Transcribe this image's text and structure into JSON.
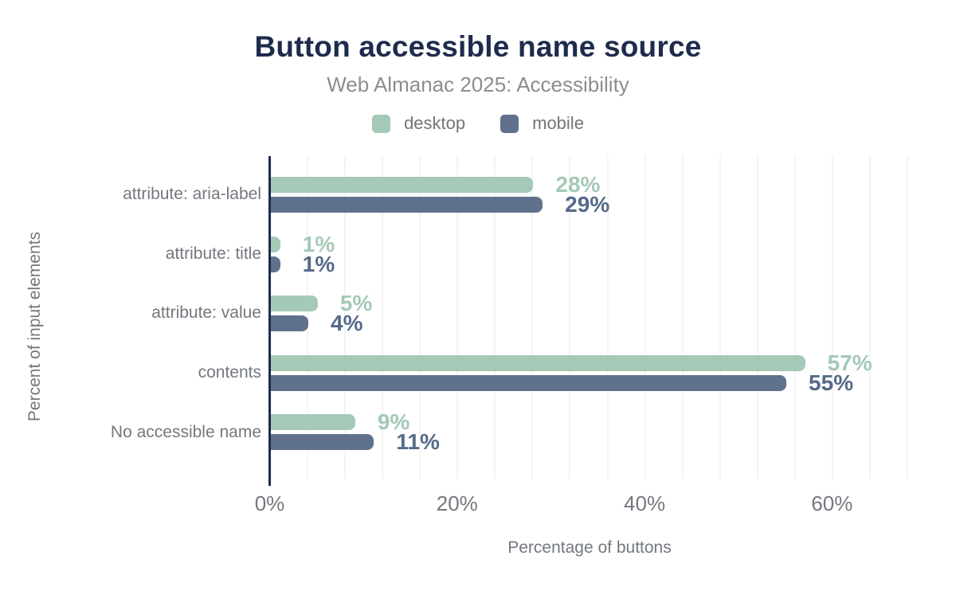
{
  "title": "Button accessible name source",
  "subtitle": "Web Almanac 2025: Accessibility",
  "colors": {
    "title_navy": "#1f2b4d",
    "axis_line": "#1e2b4f",
    "gridline": "#f4f4f4",
    "text_gray": "#73787e",
    "subtitle_gray": "#8d8d8d",
    "legend_gray": "#757575",
    "desktop_green": "#a4c9b7",
    "mobile_slate": "#5f718d",
    "desktop_value_label": "#a4c9b7",
    "mobile_value_label": "#566a89"
  },
  "chart_data": {
    "type": "bar",
    "orientation": "horizontal",
    "title": "Button accessible name source",
    "subtitle": "Web Almanac 2025: Accessibility",
    "categories": [
      "attribute: aria-label",
      "attribute: title",
      "attribute: value",
      "contents",
      "No accessible name"
    ],
    "series": [
      {
        "name": "desktop",
        "color": "#a4c9b7",
        "label_color": "#a4c9b7",
        "values": [
          28,
          1,
          5,
          57,
          9
        ]
      },
      {
        "name": "mobile",
        "color": "#5f718d",
        "label_color": "#566a89",
        "values": [
          29,
          1,
          4,
          55,
          11
        ]
      }
    ],
    "value_suffix": "%",
    "xlabel": "Percentage of buttons",
    "ylabel": "Percent of input elements",
    "x_ticks": [
      {
        "value": 0,
        "label": "0%"
      },
      {
        "value": 20,
        "label": "20%"
      },
      {
        "value": 40,
        "label": "40%"
      },
      {
        "value": 60,
        "label": "60%"
      }
    ],
    "xlim": [
      0,
      68
    ],
    "grid_step": 4,
    "grid": true,
    "legend_position": "top"
  }
}
